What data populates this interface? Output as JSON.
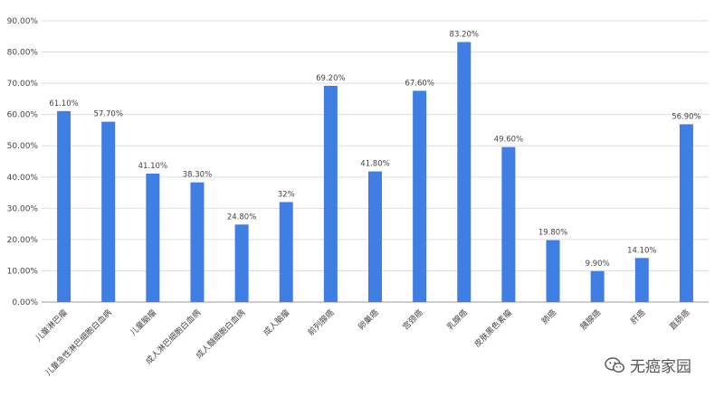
{
  "chart_data": {
    "type": "bar",
    "categories": [
      "儿童淋巴瘤",
      "儿童急性淋巴细胞白血病",
      "儿童脑瘤",
      "成人淋巴细胞白血病",
      "成人髓细胞白血病",
      "成人脑瘤",
      "前列腺癌",
      "卵巢癌",
      "宫颈癌",
      "乳腺癌",
      "皮肤黑色素瘤",
      "肺癌",
      "胰腺癌",
      "肝癌",
      "直肠癌"
    ],
    "values": [
      61.1,
      57.7,
      41.1,
      38.3,
      24.8,
      32,
      69.2,
      41.8,
      67.6,
      83.2,
      49.6,
      19.8,
      9.9,
      14.1,
      56.9
    ],
    "data_labels": [
      "61.10%",
      "57.70%",
      "41.10%",
      "38.30%",
      "24.80%",
      "32%",
      "69.20%",
      "41.80%",
      "67.60%",
      "83.20%",
      "49.60%",
      "19.80%",
      "9.90%",
      "14.10%",
      "56.90%"
    ],
    "y_ticks": [
      0,
      10,
      20,
      30,
      40,
      50,
      60,
      70,
      80,
      90
    ],
    "y_tick_labels": [
      "0.00%",
      "10.00%",
      "20.00%",
      "30.00%",
      "40.00%",
      "50.00%",
      "60.00%",
      "70.00%",
      "80.00%",
      "90.00%"
    ],
    "ylim": [
      0,
      90
    ],
    "title": "",
    "xlabel": "",
    "ylabel": "",
    "grid": true,
    "bar_color": "#3f7fe4"
  },
  "watermark": {
    "text": "无癌家园",
    "icon": "wechat-icon"
  }
}
